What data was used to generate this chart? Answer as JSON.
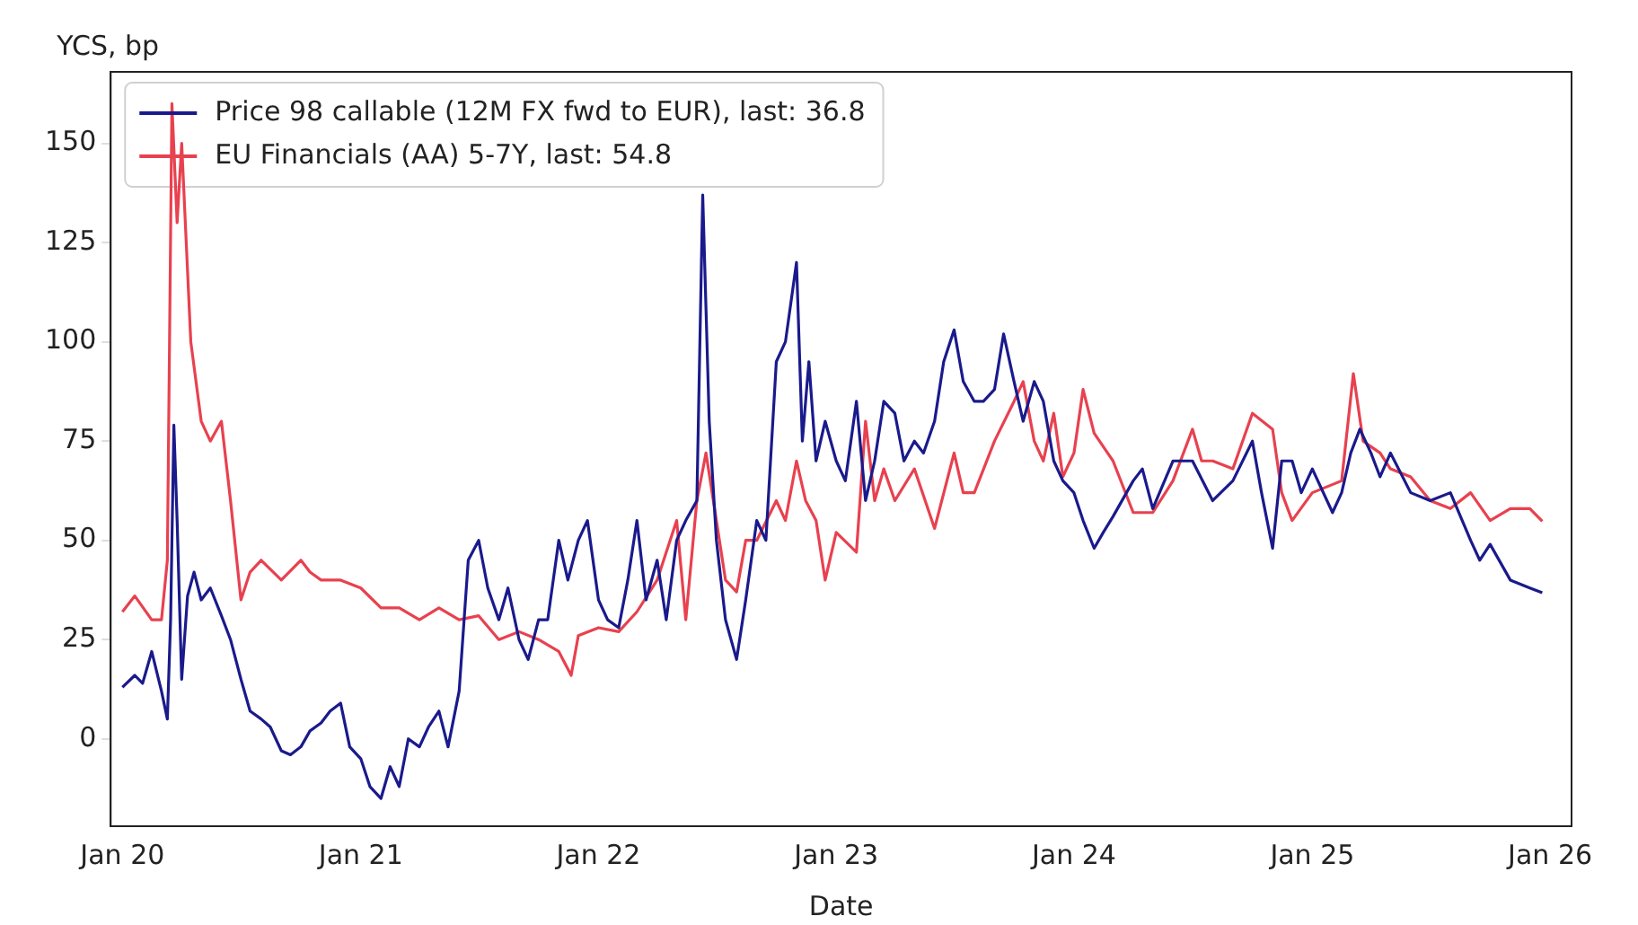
{
  "chart_data": {
    "type": "line",
    "ylabel": "YCS, bp",
    "xlabel": "Date",
    "legend": "top left",
    "grid": false,
    "marker": "none",
    "line_style": "solid",
    "xlim": [
      "2019-12-14",
      "2026-02-03"
    ],
    "ylim": [
      -22,
      168
    ],
    "xticks": [
      {
        "value": "2020-01-01",
        "label": "Jan 20"
      },
      {
        "value": "2021-01-01",
        "label": "Jan 21"
      },
      {
        "value": "2022-01-01",
        "label": "Jan 22"
      },
      {
        "value": "2023-01-01",
        "label": "Jan 23"
      },
      {
        "value": "2024-01-01",
        "label": "Jan 24"
      },
      {
        "value": "2025-01-01",
        "label": "Jan 25"
      },
      {
        "value": "2026-01-01",
        "label": "Jan 26"
      }
    ],
    "yticks": [
      0,
      25,
      50,
      75,
      100,
      125,
      150
    ],
    "series": [
      {
        "name": "Price 98 callable (12M FX fwd to EUR), last: 36.8",
        "color": "#1a1a8c",
        "x": [
          "2020-01-01",
          "2020-01-20",
          "2020-02-01",
          "2020-02-15",
          "2020-03-01",
          "2020-03-10",
          "2020-03-15",
          "2020-03-20",
          "2020-03-25",
          "2020-04-01",
          "2020-04-10",
          "2020-04-20",
          "2020-05-01",
          "2020-05-15",
          "2020-06-01",
          "2020-06-15",
          "2020-07-01",
          "2020-07-15",
          "2020-08-01",
          "2020-08-15",
          "2020-09-01",
          "2020-09-15",
          "2020-10-01",
          "2020-10-15",
          "2020-11-01",
          "2020-11-15",
          "2020-12-01",
          "2020-12-15",
          "2021-01-01",
          "2021-01-15",
          "2021-02-01",
          "2021-02-15",
          "2021-03-01",
          "2021-03-15",
          "2021-04-01",
          "2021-04-15",
          "2021-05-01",
          "2021-05-15",
          "2021-06-01",
          "2021-06-15",
          "2021-07-01",
          "2021-07-15",
          "2021-08-01",
          "2021-08-15",
          "2021-09-01",
          "2021-09-15",
          "2021-10-01",
          "2021-10-15",
          "2021-11-01",
          "2021-11-15",
          "2021-12-01",
          "2021-12-15",
          "2022-01-01",
          "2022-01-15",
          "2022-02-01",
          "2022-02-15",
          "2022-03-01",
          "2022-03-15",
          "2022-04-01",
          "2022-04-15",
          "2022-05-01",
          "2022-05-15",
          "2022-06-01",
          "2022-06-10",
          "2022-06-20",
          "2022-07-01",
          "2022-07-15",
          "2022-08-01",
          "2022-08-15",
          "2022-09-01",
          "2022-09-15",
          "2022-10-01",
          "2022-10-15",
          "2022-11-01",
          "2022-11-10",
          "2022-11-20",
          "2022-12-01",
          "2022-12-15",
          "2023-01-01",
          "2023-01-15",
          "2023-02-01",
          "2023-02-15",
          "2023-03-01",
          "2023-03-15",
          "2023-04-01",
          "2023-04-15",
          "2023-05-01",
          "2023-05-15",
          "2023-06-01",
          "2023-06-15",
          "2023-07-01",
          "2023-07-15",
          "2023-08-01",
          "2023-08-15",
          "2023-09-01",
          "2023-09-15",
          "2023-10-01",
          "2023-10-15",
          "2023-11-01",
          "2023-11-15",
          "2023-12-01",
          "2023-12-15",
          "2024-01-01",
          "2024-01-15",
          "2024-02-01",
          "2024-02-15",
          "2024-03-01",
          "2024-04-01",
          "2024-04-15",
          "2024-05-01",
          "2024-06-01",
          "2024-07-01",
          "2024-08-01",
          "2024-09-01",
          "2024-10-01",
          "2024-10-15",
          "2024-11-01",
          "2024-11-15",
          "2024-12-01",
          "2024-12-15",
          "2025-01-01",
          "2025-02-01",
          "2025-02-15",
          "2025-03-01",
          "2025-03-15",
          "2025-04-01",
          "2025-04-15",
          "2025-05-01",
          "2025-06-01",
          "2025-07-01",
          "2025-08-01",
          "2025-09-01",
          "2025-09-15",
          "2025-10-01",
          "2025-11-01",
          "2025-12-01",
          "2025-12-20"
        ],
        "values": [
          13,
          16,
          14,
          22,
          12,
          5,
          30,
          79,
          55,
          15,
          36,
          42,
          35,
          38,
          31,
          25,
          15,
          7,
          5,
          3,
          -3,
          -4,
          -2,
          2,
          4,
          7,
          9,
          -2,
          -5,
          -12,
          -15,
          -7,
          -12,
          0,
          -2,
          3,
          7,
          -2,
          12,
          45,
          50,
          38,
          30,
          38,
          25,
          20,
          30,
          30,
          50,
          40,
          50,
          55,
          35,
          30,
          28,
          40,
          55,
          35,
          45,
          30,
          50,
          55,
          60,
          137,
          80,
          50,
          30,
          20,
          35,
          55,
          50,
          95,
          100,
          120,
          75,
          95,
          70,
          80,
          70,
          65,
          85,
          60,
          70,
          85,
          82,
          70,
          75,
          72,
          80,
          95,
          103,
          90,
          85,
          85,
          88,
          102,
          90,
          80,
          90,
          85,
          70,
          65,
          62,
          55,
          48,
          52,
          56,
          65,
          68,
          58,
          70,
          70,
          60,
          65,
          75,
          62,
          48,
          70,
          70,
          62,
          68,
          57,
          62,
          72,
          78,
          72,
          66,
          72,
          62,
          60,
          62,
          50,
          45,
          49,
          40,
          38,
          36.8
        ]
      },
      {
        "name": "EU Financials (AA) 5-7Y, last: 54.8",
        "color": "#e8414f",
        "x": [
          "2020-01-01",
          "2020-01-20",
          "2020-02-15",
          "2020-03-01",
          "2020-03-10",
          "2020-03-17",
          "2020-03-25",
          "2020-04-01",
          "2020-04-15",
          "2020-05-01",
          "2020-05-15",
          "2020-06-01",
          "2020-06-15",
          "2020-07-01",
          "2020-07-15",
          "2020-08-01",
          "2020-09-01",
          "2020-10-01",
          "2020-10-15",
          "2020-11-01",
          "2020-12-01",
          "2021-01-01",
          "2021-02-01",
          "2021-03-01",
          "2021-04-01",
          "2021-05-01",
          "2021-06-01",
          "2021-07-01",
          "2021-08-01",
          "2021-09-01",
          "2021-10-01",
          "2021-11-01",
          "2021-11-20",
          "2021-12-01",
          "2022-01-01",
          "2022-02-01",
          "2022-03-01",
          "2022-04-01",
          "2022-05-01",
          "2022-05-15",
          "2022-06-01",
          "2022-06-15",
          "2022-07-01",
          "2022-07-15",
          "2022-08-01",
          "2022-08-15",
          "2022-09-01",
          "2022-10-01",
          "2022-10-15",
          "2022-11-01",
          "2022-11-15",
          "2022-12-01",
          "2022-12-15",
          "2023-01-01",
          "2023-02-01",
          "2023-02-15",
          "2023-03-01",
          "2023-03-15",
          "2023-04-01",
          "2023-05-01",
          "2023-06-01",
          "2023-07-01",
          "2023-07-15",
          "2023-08-01",
          "2023-09-01",
          "2023-10-01",
          "2023-10-15",
          "2023-11-01",
          "2023-11-15",
          "2023-12-01",
          "2023-12-15",
          "2024-01-01",
          "2024-01-15",
          "2024-02-01",
          "2024-03-01",
          "2024-04-01",
          "2024-05-01",
          "2024-06-01",
          "2024-07-01",
          "2024-07-15",
          "2024-08-01",
          "2024-09-01",
          "2024-10-01",
          "2024-11-01",
          "2024-11-15",
          "2024-12-01",
          "2025-01-01",
          "2025-02-15",
          "2025-03-05",
          "2025-03-20",
          "2025-04-15",
          "2025-05-01",
          "2025-06-01",
          "2025-07-01",
          "2025-08-01",
          "2025-09-01",
          "2025-10-01",
          "2025-11-01",
          "2025-12-01",
          "2025-12-20"
        ],
        "values": [
          32,
          36,
          30,
          30,
          45,
          160,
          130,
          150,
          100,
          80,
          75,
          80,
          60,
          35,
          42,
          45,
          40,
          45,
          42,
          40,
          40,
          38,
          33,
          33,
          30,
          33,
          30,
          31,
          25,
          27,
          25,
          22,
          16,
          26,
          28,
          27,
          32,
          40,
          55,
          30,
          60,
          72,
          55,
          40,
          37,
          50,
          50,
          60,
          55,
          70,
          60,
          55,
          40,
          52,
          47,
          80,
          60,
          68,
          60,
          68,
          53,
          72,
          62,
          62,
          75,
          85,
          90,
          75,
          70,
          82,
          66,
          72,
          88,
          77,
          70,
          57,
          57,
          65,
          78,
          70,
          70,
          68,
          82,
          78,
          62,
          55,
          62,
          65,
          92,
          75,
          72,
          68,
          66,
          60,
          58,
          62,
          55,
          58,
          58,
          54.8
        ]
      }
    ]
  }
}
